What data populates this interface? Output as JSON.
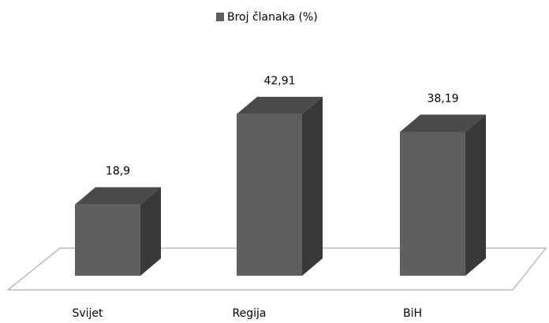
{
  "chart_data": {
    "type": "bar",
    "categories": [
      "Svijet",
      "Regija",
      "BiH"
    ],
    "series": [
      {
        "name": "Broj članaka (%)",
        "color": "#5f5f5f",
        "values": [
          18.9,
          42.91,
          38.19
        ],
        "value_labels": [
          "18,9",
          "42,91",
          "38,19"
        ]
      }
    ],
    "legend": "top"
  }
}
